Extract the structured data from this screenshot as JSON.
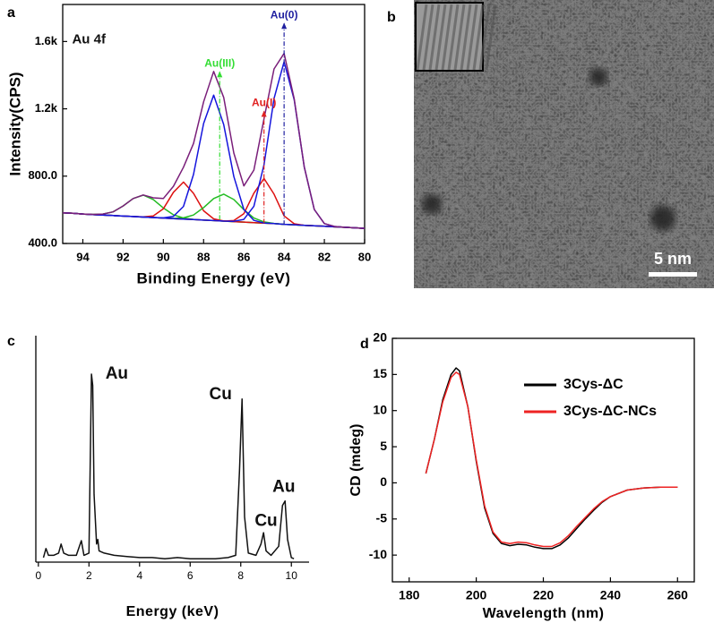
{
  "chart_data": [
    {
      "type": "line",
      "label": "a",
      "xlabel": "Binding Energy (eV)",
      "ylabel": "Intensity(CPS)",
      "xlim": [
        95,
        80
      ],
      "ylim": [
        400,
        1820
      ],
      "xticks": [
        94,
        92,
        90,
        88,
        86,
        84,
        82,
        80
      ],
      "yticks": [
        {
          "value": 400,
          "label": "400.0"
        },
        {
          "value": 800,
          "label": "800.0"
        },
        {
          "value": 1200,
          "label": "1.2k"
        },
        {
          "value": 1600,
          "label": "1.6k"
        }
      ],
      "x": [
        95,
        94.5,
        94,
        93.5,
        93,
        92.5,
        92,
        91.5,
        91,
        90.5,
        90,
        89.5,
        89,
        88.5,
        88,
        87.5,
        87,
        86.5,
        86,
        85.5,
        85,
        84.5,
        84,
        83.5,
        83,
        82.5,
        82,
        81.5,
        81,
        80.5,
        80
      ],
      "series": [
        {
          "color": "#55cccc",
          "values": [
            582,
            579,
            575,
            572,
            569,
            566,
            563,
            560,
            557,
            554,
            551,
            548,
            545,
            542,
            539,
            536,
            533,
            530,
            527,
            524,
            521,
            518,
            514,
            511,
            508,
            505,
            502,
            499,
            496,
            493,
            490
          ]
        },
        {
          "color": "#22bb22",
          "values": [
            582,
            579,
            575,
            573,
            575,
            588,
            623,
            667,
            687,
            661,
            611,
            570,
            551,
            543,
            539,
            536,
            533,
            530,
            527,
            524,
            521,
            518,
            514,
            511,
            508,
            505,
            502,
            499,
            496,
            493,
            490
          ]
        },
        {
          "color": "#dd1111",
          "values": [
            582,
            579,
            575,
            572,
            569,
            566,
            563,
            560,
            558,
            564,
            606,
            704,
            765,
            698,
            594,
            546,
            534,
            530,
            527,
            524,
            521,
            518,
            514,
            511,
            508,
            505,
            502,
            499,
            496,
            493,
            490
          ]
        },
        {
          "color": "#22bb22",
          "values": [
            582,
            579,
            575,
            572,
            569,
            566,
            563,
            560,
            557,
            554,
            551,
            549,
            552,
            569,
            613,
            667,
            693,
            661,
            601,
            551,
            528,
            519,
            514,
            511,
            508,
            505,
            502,
            499,
            496,
            493,
            490
          ]
        },
        {
          "color": "#dd1111",
          "values": [
            582,
            579,
            575,
            572,
            569,
            566,
            563,
            560,
            557,
            554,
            551,
            548,
            545,
            542,
            539,
            536,
            533,
            536,
            577,
            699,
            786,
            693,
            564,
            517,
            508,
            505,
            502,
            499,
            496,
            493,
            490
          ]
        },
        {
          "color": "#1515dd",
          "values": [
            582,
            579,
            575,
            572,
            569,
            566,
            563,
            560,
            557,
            554,
            552,
            561,
            620,
            810,
            1113,
            1281,
            1107,
            798,
            602,
            537,
            522,
            518,
            514,
            511,
            508,
            505,
            502,
            499,
            496,
            493,
            490
          ]
        },
        {
          "color": "#1515dd",
          "values": [
            582,
            579,
            575,
            572,
            569,
            566,
            563,
            560,
            557,
            554,
            551,
            548,
            545,
            542,
            539,
            536,
            533,
            532,
            543,
            621,
            868,
            1261,
            1479,
            1254,
            855,
            602,
            518,
            501,
            496,
            493,
            490
          ]
        },
        {
          "color": "#7a1f7a",
          "values": [
            582,
            579,
            575,
            573,
            575,
            588,
            623,
            667,
            688,
            671,
            667,
            740,
            853,
            994,
            1242,
            1422,
            1268,
            937,
            742,
            836,
            1141,
            1437,
            1529,
            1260,
            855,
            602,
            518,
            501,
            496,
            493,
            490
          ]
        }
      ],
      "annotations": [
        {
          "text": "Au 4f",
          "x": 93.7,
          "y": 1610,
          "color": "#111111"
        },
        {
          "text": "Au(0)",
          "x": 84,
          "y": 1755,
          "color": "#2020a0",
          "arrow": true
        },
        {
          "text": "Au(I)",
          "x": 85,
          "y": 1232,
          "color": "#e02020",
          "arrow": true
        },
        {
          "text": "Au(III)",
          "x": 87.2,
          "y": 1467,
          "color": "#33dd33",
          "arrow": true
        }
      ]
    },
    {
      "type": "image",
      "label": "b",
      "scale_bar": "5 nm"
    },
    {
      "type": "line",
      "label": "c",
      "xlabel": "Energy (keV)",
      "xlim": [
        -0.1,
        10.7
      ],
      "ylim": [
        0,
        100
      ],
      "xticks": [
        0,
        2,
        4,
        6,
        8,
        10
      ],
      "x": [
        0.2,
        0.3,
        0.4,
        0.6,
        0.8,
        0.9,
        1.0,
        1.2,
        1.5,
        1.7,
        1.8,
        2.0,
        2.1,
        2.15,
        2.2,
        2.3,
        2.35,
        2.4,
        2.6,
        3.0,
        3.5,
        4.0,
        4.5,
        5.0,
        5.5,
        6.0,
        6.5,
        7.0,
        7.5,
        7.8,
        7.95,
        8.05,
        8.15,
        8.3,
        8.6,
        8.8,
        8.9,
        9.0,
        9.2,
        9.5,
        9.65,
        9.75,
        9.85,
        10.0,
        10.1
      ],
      "series": [
        {
          "color": "#111111",
          "values": [
            2,
            6,
            3,
            3,
            4,
            8,
            4,
            3,
            3,
            9.5,
            3,
            4,
            83,
            78,
            30,
            8,
            10,
            5,
            4,
            3,
            2.5,
            2,
            2,
            1.5,
            2,
            1.5,
            1.5,
            1.5,
            2,
            3,
            40,
            72,
            20,
            4,
            3,
            8,
            13,
            5,
            3,
            7,
            25,
            27,
            10,
            2,
            1.5
          ]
        }
      ],
      "annotations": [
        {
          "text": "Au",
          "x": 3.1,
          "y": 83,
          "color": "#111111"
        },
        {
          "text": "Cu",
          "x": 7.2,
          "y": 74,
          "color": "#111111"
        },
        {
          "text": "Cu",
          "x": 9.0,
          "y": 18,
          "color": "#111111"
        },
        {
          "text": "Au",
          "x": 9.7,
          "y": 33,
          "color": "#111111"
        }
      ]
    },
    {
      "type": "line",
      "label": "d",
      "xlabel": "Wavelength (nm)",
      "ylabel": "CD (mdeg)",
      "xlim": [
        175,
        265
      ],
      "ylim": [
        -13.7,
        20
      ],
      "xticks": [
        180,
        200,
        220,
        240,
        260
      ],
      "yticks": [
        -10,
        -5,
        0,
        5,
        10,
        15,
        20
      ],
      "legend": "upper right",
      "x": [
        185,
        187.5,
        190,
        192.5,
        194,
        195,
        197.5,
        200,
        202.5,
        205,
        207.5,
        210,
        212.5,
        215,
        217.5,
        220,
        222.5,
        225,
        227.5,
        230,
        232.5,
        235,
        237.5,
        240,
        245,
        250,
        255,
        260
      ],
      "series": [
        {
          "name": "3Cys-ΔC",
          "color": "#000000",
          "values": [
            1.3,
            6,
            11.5,
            15,
            15.9,
            15.5,
            10.5,
            3,
            -3.5,
            -7,
            -8.4,
            -8.7,
            -8.5,
            -8.6,
            -8.9,
            -9.1,
            -9.1,
            -8.6,
            -7.6,
            -6.3,
            -5,
            -3.8,
            -2.7,
            -1.9,
            -1,
            -0.7,
            -0.6,
            -0.6
          ]
        },
        {
          "name": "3Cys-ΔC-NCs",
          "color": "#ee2222",
          "values": [
            1.3,
            6,
            11.2,
            14.6,
            15.3,
            15,
            10.5,
            3.2,
            -3.2,
            -6.8,
            -8.2,
            -8.4,
            -8.2,
            -8.3,
            -8.6,
            -8.8,
            -8.8,
            -8.3,
            -7.3,
            -6.0,
            -4.8,
            -3.6,
            -2.6,
            -1.9,
            -1,
            -0.7,
            -0.6,
            -0.6
          ]
        }
      ]
    }
  ]
}
